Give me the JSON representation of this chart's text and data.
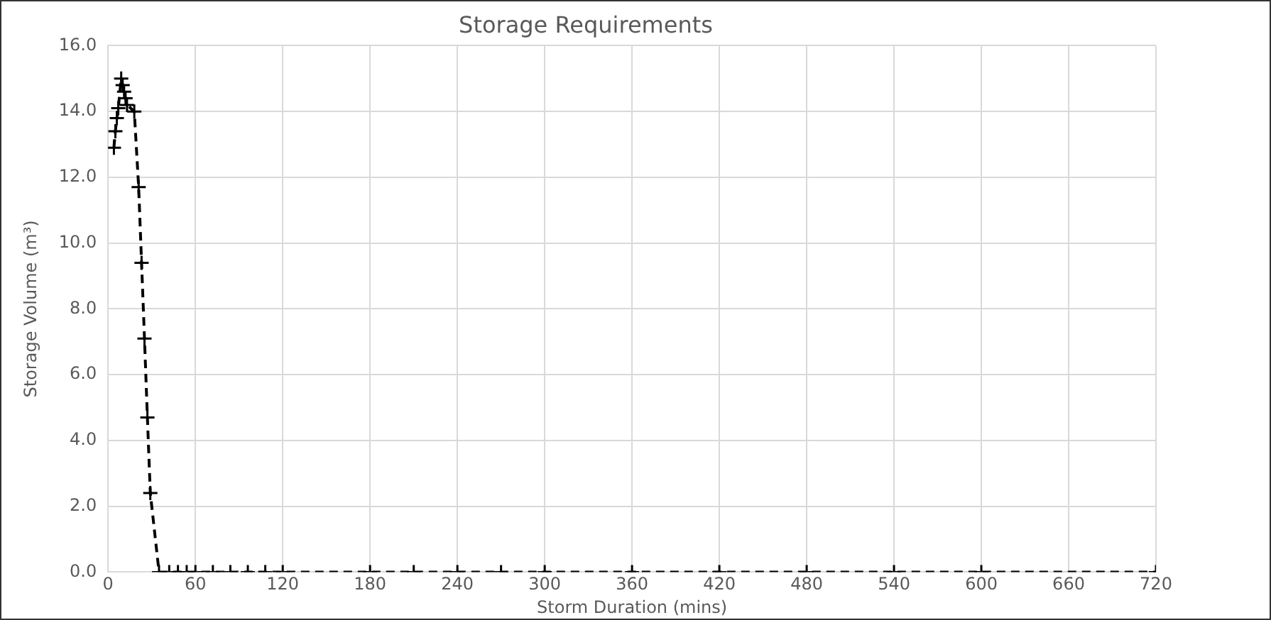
{
  "chart_data": {
    "type": "line",
    "title": "Storage Requirements",
    "xlabel": "Storm Duration (mins)",
    "ylabel": "Storage Volume (m³)",
    "x": [
      4,
      5,
      6,
      7,
      9,
      10,
      11,
      12,
      13,
      18,
      21,
      23,
      25,
      27,
      29,
      35,
      42,
      48,
      54,
      60,
      72,
      84,
      96,
      108,
      120,
      180,
      210,
      240,
      270,
      300,
      360,
      420,
      480,
      540,
      600,
      720
    ],
    "series": [
      {
        "color": "#000000",
        "values": [
          12.9,
          13.4,
          13.8,
          14.1,
          15.0,
          14.8,
          14.6,
          14.4,
          14.2,
          14.0,
          11.7,
          9.4,
          7.1,
          4.7,
          2.4,
          0,
          0,
          0,
          0,
          0,
          0,
          0,
          0,
          0,
          0,
          0,
          0,
          0,
          0,
          0,
          0,
          0,
          0,
          0,
          0,
          0
        ]
      }
    ],
    "xlim": [
      0,
      720
    ],
    "xticks": [
      0,
      60,
      120,
      180,
      240,
      300,
      360,
      420,
      480,
      540,
      600,
      660,
      720
    ],
    "ylim": [
      0,
      16
    ],
    "yticks": [
      {
        "value": 0,
        "label": "0.0"
      },
      {
        "value": 2,
        "label": "2.0"
      },
      {
        "value": 4,
        "label": "4.0"
      },
      {
        "value": 6,
        "label": "6.0"
      },
      {
        "value": 8,
        "label": "8.0"
      },
      {
        "value": 10,
        "label": "10.0"
      },
      {
        "value": 12,
        "label": "12.0"
      },
      {
        "value": 14,
        "label": "14.0"
      },
      {
        "value": 16,
        "label": "16.0"
      }
    ],
    "grid": true,
    "legend": false,
    "marker": "cross",
    "line_style": "dashed"
  }
}
